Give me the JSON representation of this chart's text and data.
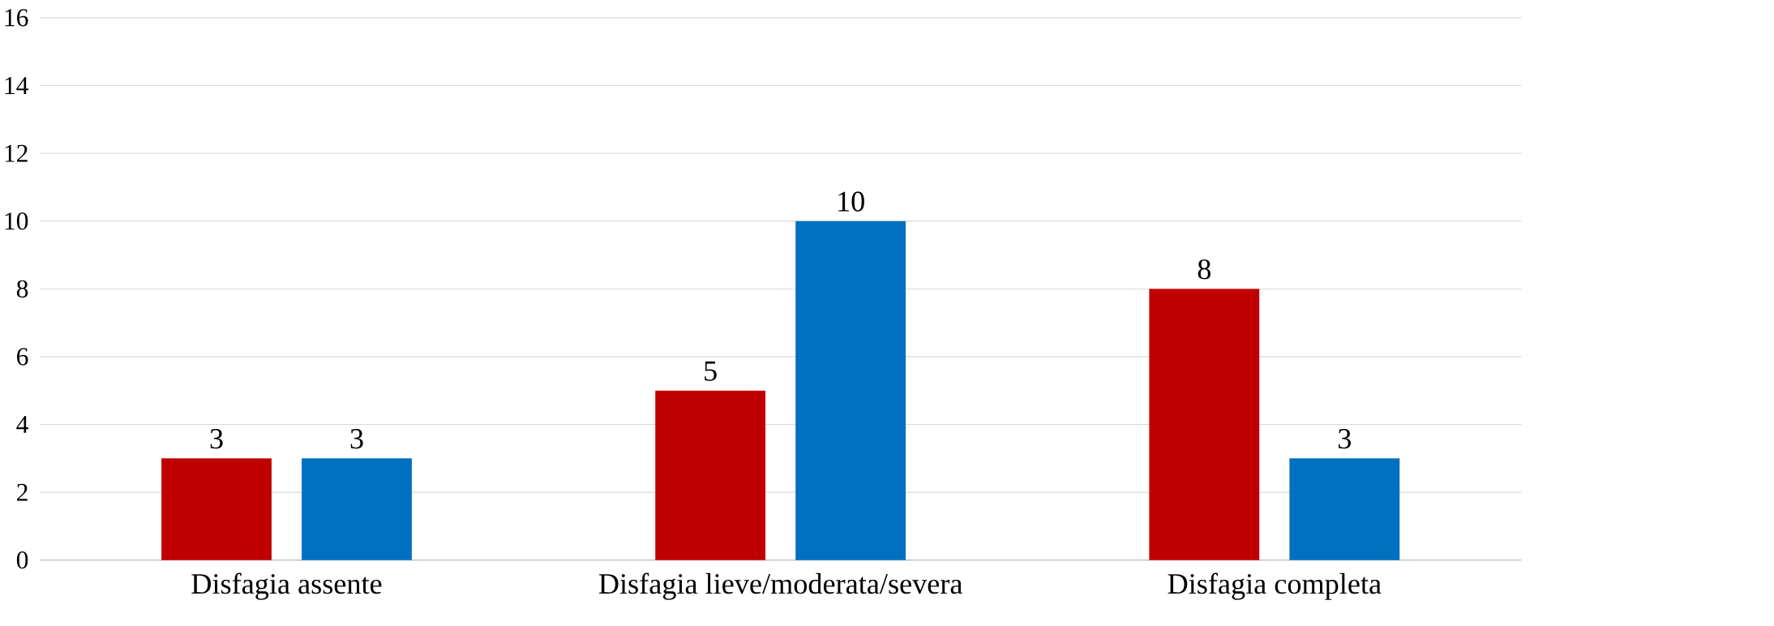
{
  "chart_data": {
    "type": "bar",
    "categories": [
      "Disfagia assente",
      "Disfagia lieve/moderata/severa",
      "Disfagia completa"
    ],
    "series": [
      {
        "color": "#c00000",
        "values": [
          3,
          5,
          8
        ]
      },
      {
        "color": "#0070c0",
        "values": [
          3,
          10,
          3
        ]
      }
    ],
    "ylim": [
      0,
      16
    ],
    "yticks": [
      0,
      2,
      4,
      6,
      8,
      10,
      12,
      14,
      16
    ],
    "grid": "y",
    "data_labels": true
  }
}
